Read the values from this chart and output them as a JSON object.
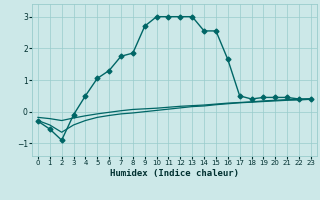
{
  "title": "",
  "xlabel": "Humidex (Indice chaleur)",
  "bg_color": "#cce8e8",
  "grid_color": "#99cccc",
  "line_color": "#006666",
  "xlim": [
    -0.5,
    23.5
  ],
  "ylim": [
    -1.4,
    3.4
  ],
  "xticks": [
    0,
    1,
    2,
    3,
    4,
    5,
    6,
    7,
    8,
    9,
    10,
    11,
    12,
    13,
    14,
    15,
    16,
    17,
    18,
    19,
    20,
    21,
    22,
    23
  ],
  "yticks": [
    -1,
    0,
    1,
    2,
    3
  ],
  "series": [
    {
      "x": [
        0,
        1,
        2,
        3,
        4,
        5,
        6,
        7,
        8,
        9,
        10,
        11,
        12,
        13,
        14,
        15,
        16,
        17,
        18,
        19,
        20,
        21,
        22,
        23
      ],
      "y": [
        -0.3,
        -0.55,
        -0.9,
        -0.1,
        0.5,
        1.05,
        1.3,
        1.75,
        1.85,
        2.7,
        3.0,
        3.0,
        3.0,
        3.0,
        2.55,
        2.55,
        1.65,
        0.5,
        0.4,
        0.45,
        0.45,
        0.45,
        0.4,
        0.4
      ],
      "marker": "D",
      "markersize": 2.5,
      "linewidth": 1.0
    },
    {
      "x": [
        0,
        1,
        2,
        3,
        4,
        5,
        6,
        7,
        8,
        9,
        10,
        11,
        12,
        13,
        14,
        15,
        16,
        17,
        18,
        19,
        20,
        21,
        22,
        23
      ],
      "y": [
        -0.18,
        -0.22,
        -0.28,
        -0.2,
        -0.13,
        -0.07,
        -0.02,
        0.03,
        0.07,
        0.09,
        0.11,
        0.14,
        0.17,
        0.19,
        0.21,
        0.24,
        0.27,
        0.29,
        0.31,
        0.34,
        0.36,
        0.38,
        0.39,
        0.41
      ],
      "marker": null,
      "markersize": 0,
      "linewidth": 0.9
    },
    {
      "x": [
        0,
        1,
        2,
        3,
        4,
        5,
        6,
        7,
        8,
        9,
        10,
        11,
        12,
        13,
        14,
        15,
        16,
        17,
        18,
        19,
        20,
        21,
        22,
        23
      ],
      "y": [
        -0.28,
        -0.42,
        -0.65,
        -0.42,
        -0.28,
        -0.18,
        -0.12,
        -0.07,
        -0.04,
        0.0,
        0.04,
        0.08,
        0.12,
        0.16,
        0.18,
        0.22,
        0.25,
        0.28,
        0.3,
        0.32,
        0.34,
        0.36,
        0.37,
        0.39
      ],
      "marker": null,
      "markersize": 0,
      "linewidth": 0.9
    }
  ]
}
